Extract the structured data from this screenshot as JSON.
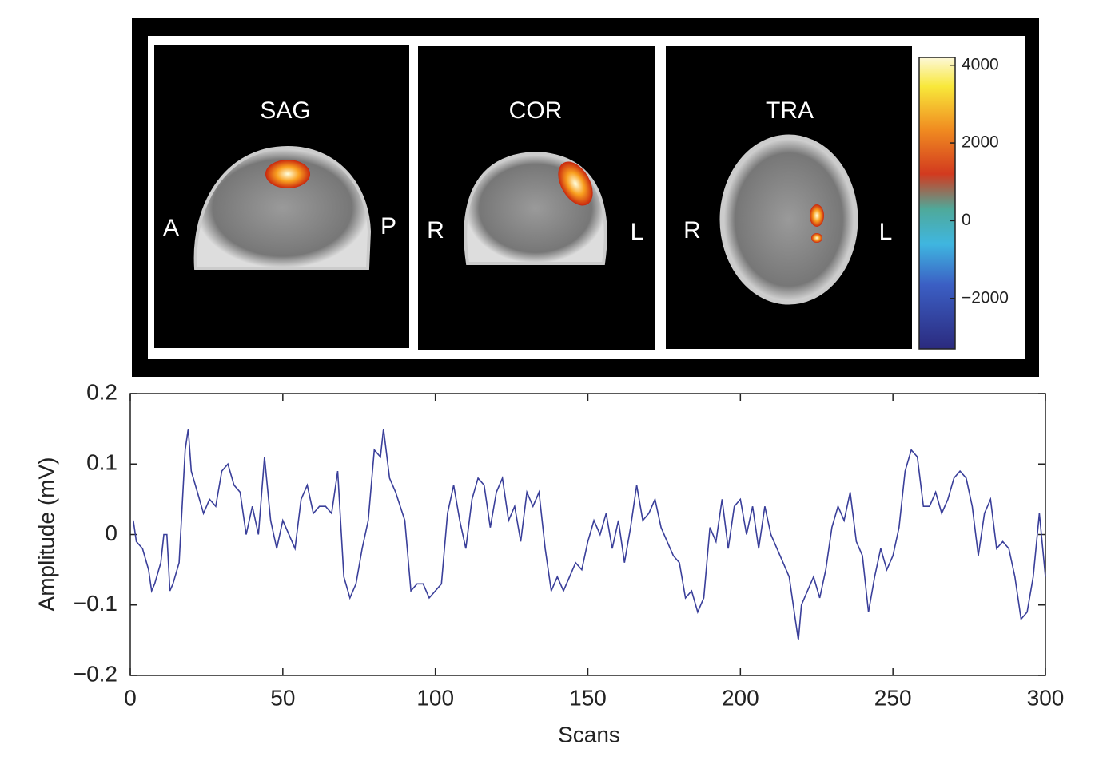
{
  "chart_data": [
    {
      "type": "image",
      "panels": [
        {
          "title": "SAG",
          "left": "A",
          "right": "P"
        },
        {
          "title": "COR",
          "left": "R",
          "right": "L"
        },
        {
          "title": "TRA",
          "left": "R",
          "right": "L"
        }
      ],
      "colorbar": {
        "lim": [
          -3300,
          4200
        ],
        "ticks": [
          4000,
          2000,
          0,
          {
            "value": -2000,
            "label": "−2000"
          }
        ]
      }
    },
    {
      "type": "line",
      "xlabel": "Scans",
      "ylabel": "Amplitude (mV)",
      "color": "#3a3f9a",
      "xlim": [
        0,
        300
      ],
      "xticks": [
        0,
        50,
        100,
        150,
        200,
        250,
        300
      ],
      "ylim": [
        -0.2,
        0.2
      ],
      "yticks": [
        {
          "value": -0.2,
          "label": "−0.2"
        },
        {
          "value": -0.1,
          "label": "−0.1"
        },
        0,
        0.1,
        0.2
      ],
      "x": [
        1,
        2,
        4,
        6,
        7,
        8,
        10,
        11,
        12,
        13,
        14,
        16,
        18,
        19,
        20,
        22,
        24,
        26,
        28,
        30,
        32,
        34,
        36,
        38,
        40,
        42,
        44,
        46,
        48,
        50,
        52,
        54,
        56,
        58,
        60,
        62,
        64,
        66,
        68,
        70,
        72,
        74,
        76,
        78,
        80,
        82,
        83,
        85,
        87,
        90,
        92,
        94,
        96,
        98,
        100,
        102,
        104,
        106,
        108,
        110,
        112,
        114,
        116,
        118,
        120,
        122,
        124,
        126,
        128,
        130,
        132,
        134,
        136,
        138,
        140,
        142,
        144,
        146,
        148,
        150,
        152,
        154,
        156,
        158,
        160,
        162,
        164,
        166,
        168,
        170,
        172,
        174,
        176,
        178,
        180,
        182,
        184,
        186,
        188,
        190,
        192,
        194,
        196,
        198,
        200,
        202,
        204,
        206,
        208,
        210,
        212,
        214,
        216,
        218,
        219,
        220,
        222,
        224,
        226,
        228,
        230,
        232,
        234,
        236,
        238,
        240,
        242,
        244,
        246,
        248,
        250,
        252,
        254,
        256,
        258,
        260,
        262,
        264,
        266,
        268,
        270,
        272,
        274,
        276,
        278,
        280,
        282,
        284,
        286,
        288,
        290,
        292,
        294,
        296,
        298,
        300
      ],
      "values": [
        0.02,
        -0.01,
        -0.02,
        -0.05,
        -0.08,
        -0.07,
        -0.04,
        0.0,
        0.0,
        -0.08,
        -0.07,
        -0.04,
        0.12,
        0.15,
        0.09,
        0.06,
        0.03,
        0.05,
        0.04,
        0.09,
        0.1,
        0.07,
        0.06,
        0.0,
        0.04,
        0.0,
        0.11,
        0.02,
        -0.02,
        0.02,
        0.0,
        -0.02,
        0.05,
        0.07,
        0.03,
        0.04,
        0.04,
        0.03,
        0.09,
        -0.06,
        -0.09,
        -0.07,
        -0.02,
        0.02,
        0.12,
        0.11,
        0.15,
        0.08,
        0.06,
        0.02,
        -0.08,
        -0.07,
        -0.07,
        -0.09,
        -0.08,
        -0.07,
        0.03,
        0.07,
        0.02,
        -0.02,
        0.05,
        0.08,
        0.07,
        0.01,
        0.06,
        0.08,
        0.02,
        0.04,
        -0.01,
        0.06,
        0.04,
        0.06,
        -0.02,
        -0.08,
        -0.06,
        -0.08,
        -0.06,
        -0.04,
        -0.05,
        -0.01,
        0.02,
        0.0,
        0.03,
        -0.02,
        0.02,
        -0.04,
        0.01,
        0.07,
        0.02,
        0.03,
        0.05,
        0.01,
        -0.01,
        -0.03,
        -0.04,
        -0.09,
        -0.08,
        -0.11,
        -0.09,
        0.01,
        -0.01,
        0.05,
        -0.02,
        0.04,
        0.05,
        0.0,
        0.04,
        -0.02,
        0.04,
        0.0,
        -0.02,
        -0.04,
        -0.06,
        -0.12,
        -0.15,
        -0.1,
        -0.08,
        -0.06,
        -0.09,
        -0.05,
        0.01,
        0.04,
        0.02,
        0.06,
        -0.01,
        -0.03,
        -0.11,
        -0.06,
        -0.02,
        -0.05,
        -0.03,
        0.01,
        0.09,
        0.12,
        0.11,
        0.04,
        0.04,
        0.06,
        0.03,
        0.05,
        0.08,
        0.09,
        0.08,
        0.04,
        -0.03,
        0.03,
        0.05,
        -0.02,
        -0.01,
        -0.02,
        -0.06,
        -0.12,
        -0.11,
        -0.06,
        0.03,
        -0.06
      ]
    }
  ]
}
